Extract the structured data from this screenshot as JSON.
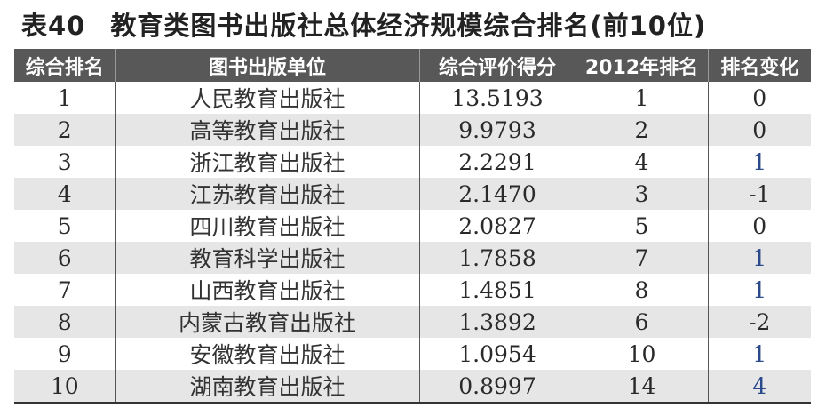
{
  "title": {
    "number": "表40",
    "text": "教育类图书出版社总体经济规模综合排名(前10位)"
  },
  "table": {
    "headers": [
      "综合排名",
      "图书出版单位",
      "综合评价得分",
      "2012年排名",
      "排名变化"
    ],
    "rows": [
      [
        "1",
        "人民教育出版社",
        "13.5193",
        "1",
        "0"
      ],
      [
        "2",
        "高等教育出版社",
        "9.9793",
        "2",
        "0"
      ],
      [
        "3",
        "浙江教育出版社",
        "2.2291",
        "4",
        "1"
      ],
      [
        "4",
        "江苏教育出版社",
        "2.1470",
        "3",
        "-1"
      ],
      [
        "5",
        "四川教育出版社",
        "2.0827",
        "5",
        "0"
      ],
      [
        "6",
        "教育科学出版社",
        "1.7858",
        "7",
        "1"
      ],
      [
        "7",
        "山西教育出版社",
        "1.4851",
        "8",
        "1"
      ],
      [
        "8",
        "内蒙古教育出版社",
        "1.3892",
        "6",
        "-2"
      ],
      [
        "9",
        "安徽教育出版社",
        "1.0954",
        "10",
        "1"
      ],
      [
        "10",
        "湖南教育出版社",
        "0.8997",
        "14",
        "4"
      ]
    ]
  },
  "colors": {
    "header_bg": "#585858",
    "alt_row_bg": "#e6e6e6",
    "positive_change": "#2b4a8c"
  }
}
